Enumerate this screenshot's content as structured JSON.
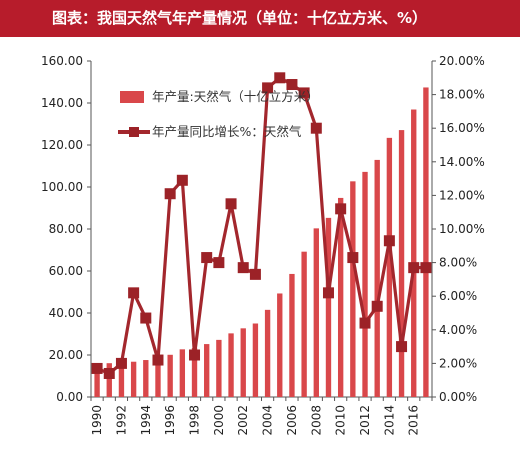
{
  "title": "图表：我国天然气年产量情况（单位：十亿立方米、%）",
  "colors": {
    "title_bg": "#b71c2b",
    "bar": "#d9474a",
    "line": "#a3272d",
    "marker": "#9c2227",
    "axis": "#555555"
  },
  "chart_data": {
    "type": "bar",
    "title": "图表：我国天然气年产量情况（单位：十亿立方米、%）",
    "x": [
      1990,
      1991,
      1992,
      1993,
      1994,
      1995,
      1996,
      1997,
      1998,
      1999,
      2000,
      2001,
      2002,
      2003,
      2004,
      2005,
      2006,
      2007,
      2008,
      2009,
      2010,
      2011,
      2012,
      2013,
      2014,
      2015,
      2016,
      2017
    ],
    "x_tick_labels": [
      "1990",
      "1992",
      "1994",
      "1996",
      "1998",
      "2000",
      "2002",
      "2004",
      "2006",
      "2008",
      "2010",
      "2012",
      "2014",
      "2016"
    ],
    "ylim": [
      0,
      160
    ],
    "y_ticks": [
      "0.00",
      "20.00",
      "40.00",
      "60.00",
      "80.00",
      "100.00",
      "120.00",
      "140.00",
      "160.00"
    ],
    "y2lim": [
      0,
      20
    ],
    "y2_ticks": [
      "0.00%",
      "2.00%",
      "4.00%",
      "6.00%",
      "8.00%",
      "10.00%",
      "12.00%",
      "14.00%",
      "16.00%",
      "18.00%",
      "20.00%"
    ],
    "grid": false,
    "legend_position": "top-left",
    "series": [
      {
        "name": "年产量:天然气（十亿立方米）",
        "type": "bar",
        "axis": "left",
        "values": [
          15.3,
          16.1,
          15.8,
          16.8,
          17.6,
          17.9,
          20.1,
          22.7,
          23.3,
          25.2,
          27.2,
          30.3,
          32.7,
          35.0,
          41.5,
          49.3,
          58.6,
          69.2,
          80.3,
          85.3,
          94.8,
          102.7,
          107.2,
          112.9,
          123.4,
          127.1,
          136.9,
          147.4
        ]
      },
      {
        "name": "年产量同比增长%：天然气",
        "type": "line",
        "axis": "right",
        "values": [
          1.7,
          1.4,
          2.0,
          6.2,
          4.7,
          2.2,
          12.1,
          12.9,
          2.5,
          8.3,
          8.0,
          11.5,
          7.7,
          7.3,
          18.4,
          19.0,
          18.6,
          18.1,
          16.0,
          6.2,
          11.2,
          8.3,
          4.4,
          5.4,
          9.3,
          3.0,
          7.7,
          7.7
        ]
      }
    ]
  }
}
